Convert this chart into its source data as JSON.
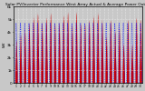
{
  "title": "Solar PV/Inverter Performance West Array Actual & Average Power Output",
  "title_fontsize": 3.2,
  "bg_color": "#c8c8c8",
  "plot_bg_color": "#c8c8c8",
  "bar_color": "#cc0000",
  "avg_line_color": "#0000ff",
  "grid_color": "#ffffff",
  "ylim": [
    0,
    6000
  ],
  "ytick_vals": [
    0,
    1000,
    2000,
    3000,
    4000,
    5000,
    6000
  ],
  "ytick_labels": [
    "0",
    "1k",
    "2k",
    "3k",
    "4k",
    "5k",
    "6k"
  ],
  "ytick_fontsize": 3.0,
  "xtick_fontsize": 2.2,
  "num_days": 30,
  "num_intervals_per_day": 288,
  "peak_power": 5500,
  "ylabel": "kW",
  "ylabel_fontsize": 3.0
}
